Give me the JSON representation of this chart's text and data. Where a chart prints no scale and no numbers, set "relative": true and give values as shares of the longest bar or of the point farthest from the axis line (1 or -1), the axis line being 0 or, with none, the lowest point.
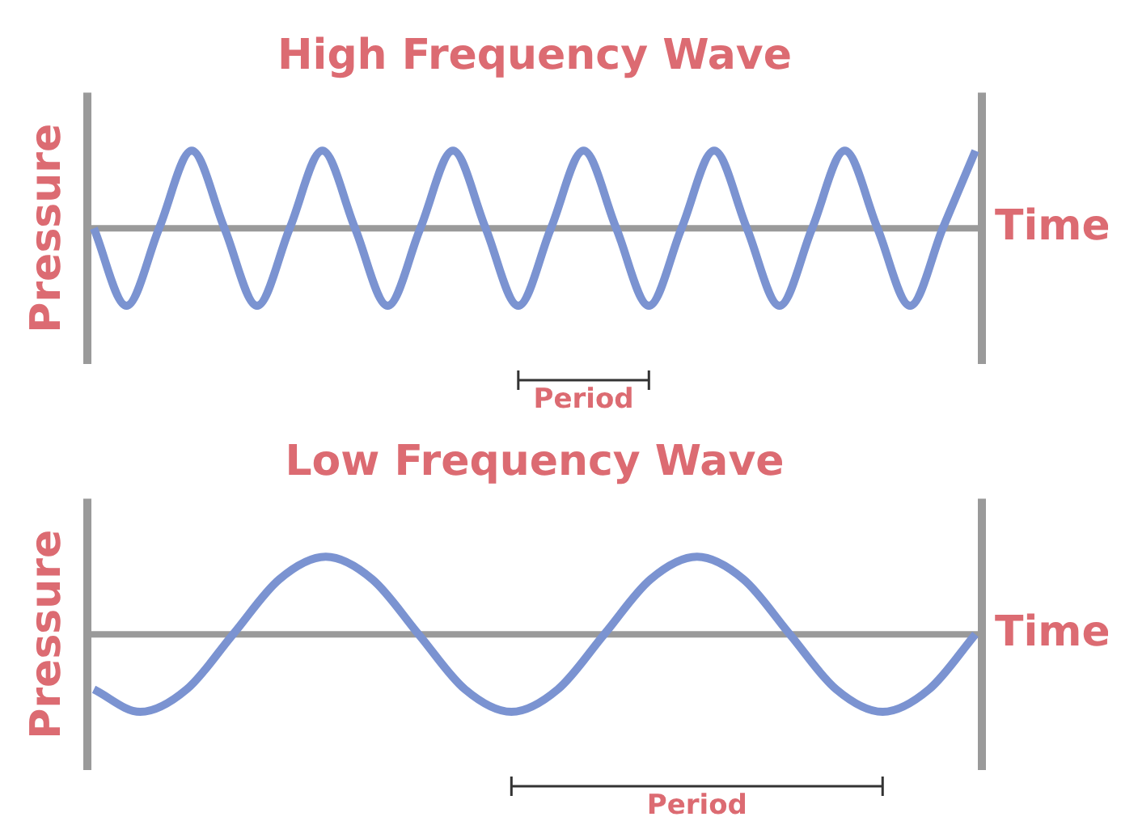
{
  "chart_data": [
    {
      "type": "line",
      "title": "High Frequency Wave",
      "xlabel": "Time",
      "ylabel": "Pressure",
      "relative": true,
      "marker": "none",
      "color": "#7b93d1",
      "categories": [
        null,
        null,
        null,
        null,
        null,
        null,
        null,
        null,
        null,
        null,
        null,
        null,
        null,
        null,
        null,
        null,
        null,
        null,
        null,
        null,
        null,
        null,
        null,
        null,
        null,
        null,
        null,
        null
      ],
      "values": [
        0,
        -1,
        0,
        1,
        0,
        -1,
        0,
        1,
        0,
        -1,
        0,
        1,
        0,
        -1,
        0,
        1,
        0,
        -1,
        0,
        1,
        0,
        -1,
        0,
        1,
        0,
        -1,
        0,
        1
      ],
      "annotations": [
        "Period"
      ]
    },
    {
      "type": "line",
      "title": "Low Frequency Wave",
      "xlabel": "Time",
      "ylabel": "Pressure",
      "relative": true,
      "marker": "none",
      "color": "#7b93d1",
      "categories": [
        null,
        null,
        null,
        null,
        null,
        null,
        null,
        null,
        null,
        null,
        null,
        null,
        null,
        null,
        null,
        null,
        null,
        null,
        null,
        null
      ],
      "values": [
        -0.71,
        -1,
        -0.71,
        0,
        0.71,
        1,
        0.71,
        0,
        -0.71,
        -1,
        -0.71,
        0,
        0.71,
        1,
        0.71,
        0,
        -0.71,
        -1,
        -0.71,
        0
      ],
      "annotations": [
        "Period"
      ]
    }
  ]
}
